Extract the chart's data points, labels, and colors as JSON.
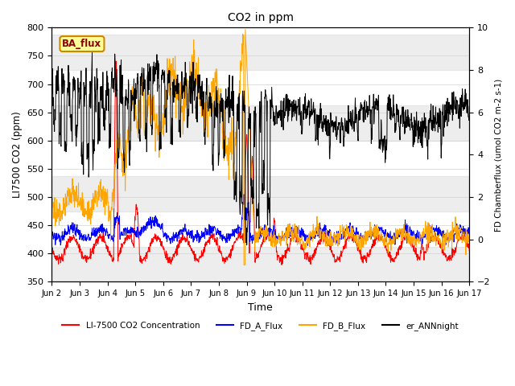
{
  "title": "CO2 in ppm",
  "ylabel_left": "LI7500 CO2 (ppm)",
  "ylabel_right": "FD Chamberflux (umol CO2 m-2 s-1)",
  "xlabel": "Time",
  "ylim_left": [
    350,
    800
  ],
  "ylim_right": [
    -2,
    10
  ],
  "yticks_left": [
    350,
    400,
    450,
    500,
    550,
    600,
    650,
    700,
    750,
    800
  ],
  "yticks_right": [
    -2,
    0,
    2,
    4,
    6,
    8,
    10
  ],
  "colors": {
    "red": "#FF0000",
    "blue": "#0000FF",
    "orange": "#FFA500",
    "black": "#000000"
  },
  "ba_flux_box": {
    "text": "BA_flux",
    "facecolor": "#FFFF99",
    "edgecolor": "#CC8800"
  },
  "legend_labels": [
    "LI-7500 CO2 Concentration",
    "FD_A_Flux",
    "FD_B_Flux",
    "er_ANNnight"
  ],
  "x_start": 2,
  "x_end": 17,
  "x_ticks": [
    2,
    3,
    4,
    5,
    6,
    7,
    8,
    9,
    10,
    11,
    12,
    13,
    14,
    15,
    16,
    17
  ],
  "x_tick_labels": [
    "Jun 2",
    "Jun 3",
    "Jun 4",
    "Jun 5",
    "Jun 6",
    "Jun 7",
    "Jun 8",
    "Jun 9",
    "Jun 10",
    "Jun 11",
    "Jun 12",
    "Jun 13",
    "Jun 14",
    "Jun 15",
    "Jun 16",
    "Jun 17"
  ],
  "band_color": "#cccccc",
  "band_alpha": 0.35,
  "band_ranges": [
    [
      350,
      412.5
    ],
    [
      475,
      537.5
    ],
    [
      600,
      662.5
    ],
    [
      725,
      787.5
    ]
  ]
}
